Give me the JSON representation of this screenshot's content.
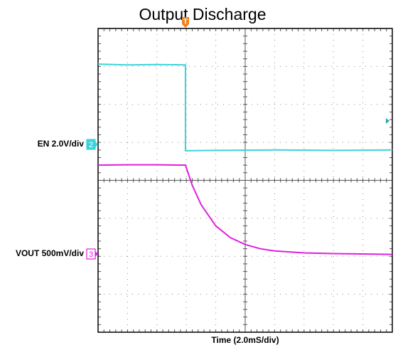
{
  "chart_data": {
    "type": "line",
    "title": "Output Discharge",
    "x_label": "Time (2.0mS/div)",
    "trigger_label": "T",
    "xlim": [
      0,
      10
    ],
    "ylim": [
      0,
      8
    ],
    "grid": true,
    "series": [
      {
        "name": "EN 2.0V/div",
        "channel": "2",
        "color": "#3cd2dc",
        "x": [
          0,
          1,
          2,
          2.97,
          2.97,
          4,
          6,
          8,
          10
        ],
        "values": [
          7.06,
          7.04,
          7.05,
          7.04,
          4.78,
          4.79,
          4.8,
          4.79,
          4.8
        ]
      },
      {
        "name": "VOUT 500mV/div",
        "channel": "3",
        "color": "#e01fe0",
        "x": [
          0,
          1,
          2,
          2.97,
          3.2,
          3.5,
          4,
          4.5,
          5,
          5.5,
          6,
          7,
          8,
          9,
          10
        ],
        "values": [
          4.4,
          4.41,
          4.41,
          4.4,
          3.87,
          3.36,
          2.8,
          2.49,
          2.31,
          2.2,
          2.14,
          2.09,
          2.07,
          2.06,
          2.05
        ]
      }
    ]
  }
}
